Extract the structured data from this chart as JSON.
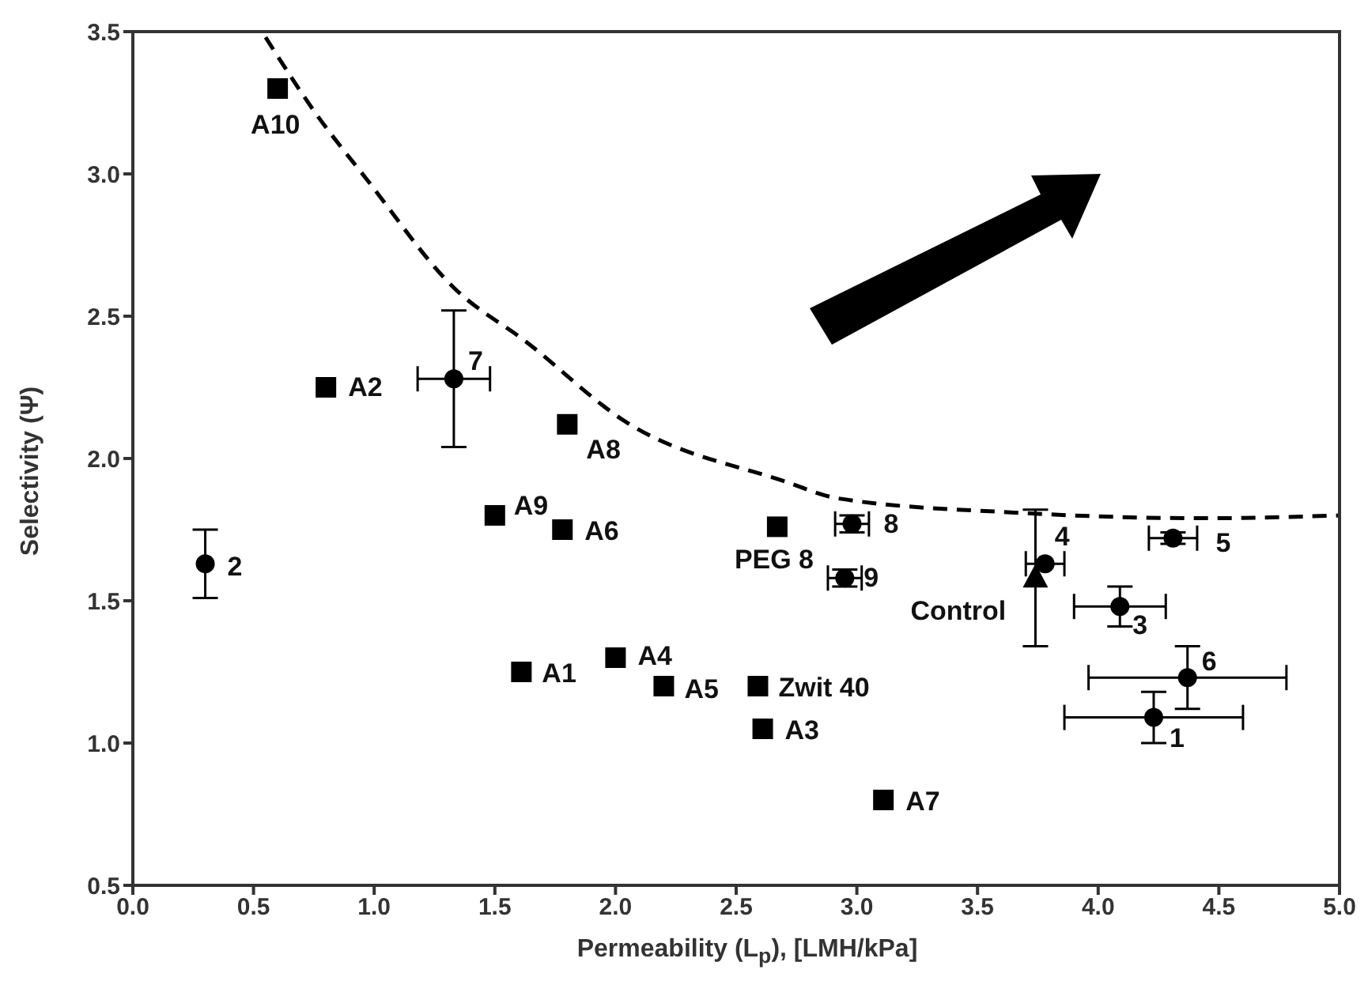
{
  "chart_data": {
    "type": "scatter",
    "xlabel": "Permeability (L$_{p}$), [LMH/kPa]",
    "ylabel": "Selectivity (Ψ)",
    "xlim": [
      0,
      5
    ],
    "xticks": [
      {
        "value": 0,
        "label": "0.0"
      },
      0.5,
      {
        "value": 1,
        "label": "1.0"
      },
      1.5,
      {
        "value": 2,
        "label": "2.0"
      },
      2.5,
      {
        "value": 3,
        "label": "3.0"
      },
      3.5,
      {
        "value": 4,
        "label": "4.0"
      },
      4.5,
      {
        "value": 5,
        "label": "5.0"
      }
    ],
    "ylim": [
      0.5,
      3.5
    ],
    "yticks": [
      0.5,
      {
        "value": 1,
        "label": "1.0"
      },
      1.5,
      {
        "value": 2,
        "label": "2.0"
      },
      2.5,
      {
        "value": 3,
        "label": "3.0"
      },
      3.5
    ],
    "series": [
      {
        "marker": "square",
        "color": "#000000",
        "x": [
          0.6,
          0.8,
          1.8,
          1.5,
          1.78,
          1.61,
          2.0,
          2.2,
          2.59,
          2.61,
          3.11,
          2.67
        ],
        "values": [
          3.3,
          2.25,
          2.12,
          1.8,
          1.75,
          1.25,
          1.3,
          1.2,
          1.2,
          1.05,
          0.8,
          1.76
        ]
      },
      {
        "marker": "circle",
        "color": "#000000",
        "x": [
          2.98,
          2.95,
          3.78,
          4.31,
          4.09,
          4.37,
          4.23,
          1.33,
          0.3
        ],
        "values": [
          1.77,
          1.58,
          1.63,
          1.72,
          1.48,
          1.23,
          1.09,
          2.28,
          1.63
        ],
        "errors": [
          0.03,
          0.03,
          null,
          0.02,
          0.07,
          0.11,
          0.09,
          0.24,
          0.12
        ],
        "xerrors": [
          0.07,
          0.07,
          0.08,
          0.1,
          0.19,
          0.41,
          0.37,
          0.15,
          null
        ]
      },
      {
        "marker": "triangle",
        "color": "#000000",
        "x": [
          3.74
        ],
        "values": [
          1.58
        ],
        "errors": [
          0.24
        ]
      },
      {
        "type": "line",
        "marker": "none",
        "line_style": "dashed",
        "color": "#000000",
        "x": [
          0.55,
          0.76,
          0.97,
          1.33,
          1.63,
          2.04,
          2.7,
          2.92,
          3.65,
          4.44,
          5.0
        ],
        "values": [
          3.48,
          3.21,
          2.98,
          2.6,
          2.41,
          2.13,
          1.92,
          1.86,
          1.81,
          1.79,
          1.8
        ]
      }
    ],
    "annotations": [
      {
        "text": "A10",
        "x": 0.6,
        "y": 3.3
      },
      {
        "text": "A2",
        "x": 0.8,
        "y": 2.25
      },
      {
        "text": "A8",
        "x": 1.8,
        "y": 2.12
      },
      {
        "text": "A9",
        "x": 1.5,
        "y": 1.8
      },
      {
        "text": "A6",
        "x": 1.78,
        "y": 1.75
      },
      {
        "text": "A1",
        "x": 1.61,
        "y": 1.25
      },
      {
        "text": "A4",
        "x": 2.0,
        "y": 1.3
      },
      {
        "text": "A5",
        "x": 2.2,
        "y": 1.2
      },
      {
        "text": "Zwit 40",
        "x": 2.59,
        "y": 1.2
      },
      {
        "text": "A3",
        "x": 2.61,
        "y": 1.05
      },
      {
        "text": "A7",
        "x": 3.11,
        "y": 0.8
      },
      {
        "text": "PEG 8",
        "x": 2.67,
        "y": 1.76
      },
      {
        "text": "8",
        "x": 2.98,
        "y": 1.77
      },
      {
        "text": "9",
        "x": 2.95,
        "y": 1.58
      },
      {
        "text": "4",
        "x": 3.78,
        "y": 1.63
      },
      {
        "text": "5",
        "x": 4.31,
        "y": 1.72
      },
      {
        "text": "3",
        "x": 4.09,
        "y": 1.48
      },
      {
        "text": "6",
        "x": 4.37,
        "y": 1.23
      },
      {
        "text": "1",
        "x": 4.23,
        "y": 1.09
      },
      {
        "text": "7",
        "x": 1.33,
        "y": 2.28
      },
      {
        "text": "2",
        "x": 0.3,
        "y": 1.63
      },
      {
        "text": "Control",
        "x": 3.74,
        "y": 1.58
      }
    ]
  }
}
